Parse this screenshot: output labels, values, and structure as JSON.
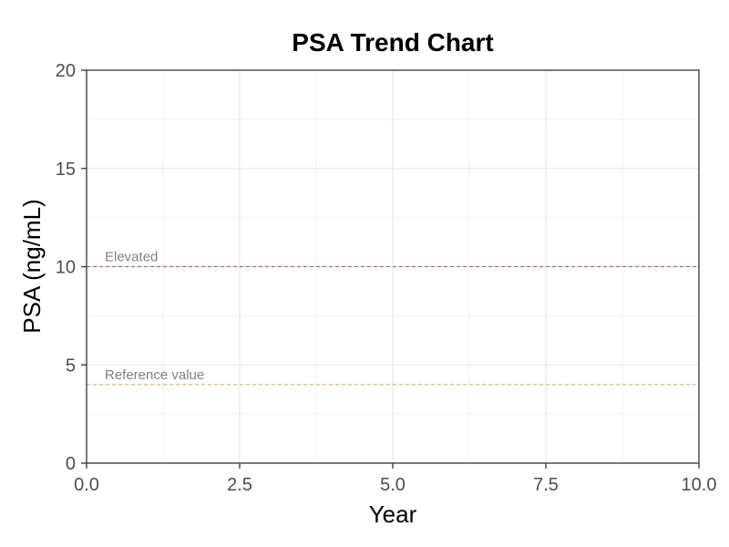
{
  "chart_data": {
    "type": "line",
    "title": "PSA Trend Chart",
    "xlabel": "Year",
    "ylabel": "PSA (ng/mL)",
    "xlim": [
      0,
      10
    ],
    "ylim": [
      0,
      20
    ],
    "x_ticks": [
      0,
      2.5,
      5,
      7.5,
      10
    ],
    "x_tick_labels": [
      "0.0",
      "2.5",
      "5.0",
      "7.5",
      "10.0"
    ],
    "y_ticks": [
      0,
      5,
      10,
      15,
      20
    ],
    "y_tick_labels": [
      "0",
      "5",
      "10",
      "15",
      "20"
    ],
    "grid": true,
    "series": [],
    "reference_lines": [
      {
        "label": "Elevated",
        "y": 10,
        "color": "#c0504d",
        "style": "dashed"
      },
      {
        "label": "Reference value",
        "y": 4,
        "color": "#e6a43a",
        "style": "dashed"
      }
    ]
  }
}
